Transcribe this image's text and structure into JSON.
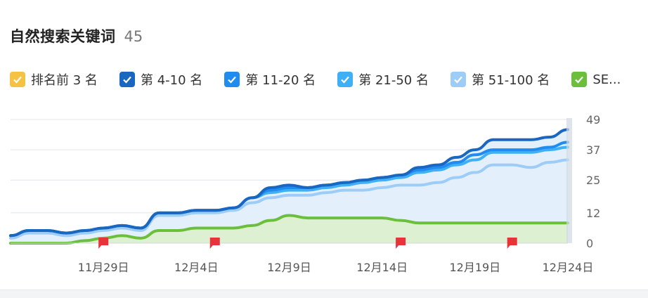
{
  "header": {
    "title": "自然搜索关键词",
    "count": "45"
  },
  "legend": [
    {
      "label": "排名前 3 名",
      "color": "#f6c244"
    },
    {
      "label": "第 4-10 名",
      "color": "#1a67c2"
    },
    {
      "label": "第 11-20 名",
      "color": "#1f8cf0"
    },
    {
      "label": "第 21-50 名",
      "color": "#3fb0f5"
    },
    {
      "label": "第 51-100 名",
      "color": "#9dcdf7"
    },
    {
      "label": "SE...",
      "color": "#6bbf3b"
    }
  ],
  "chart_data": {
    "type": "area",
    "x": [
      "11月24日",
      "11月25日",
      "11月26日",
      "11月27日",
      "11月28日",
      "11月29日",
      "11月30日",
      "12月1日",
      "12月2日",
      "12月3日",
      "12月4日",
      "12月5日",
      "12月6日",
      "12月7日",
      "12月8日",
      "12月9日",
      "12月10日",
      "12月11日",
      "12月12日",
      "12月13日",
      "12月14日",
      "12月15日",
      "12月16日",
      "12月17日",
      "12月18日",
      "12月19日",
      "12月20日",
      "12月21日",
      "12月22日",
      "12月23日",
      "12月24日"
    ],
    "x_tick_labels": [
      "11月29日",
      "12月4日",
      "12月9日",
      "12月14日",
      "12月19日",
      "12月24日"
    ],
    "y_ticks": [
      0,
      12,
      25,
      37,
      49
    ],
    "ylim": [
      0,
      49
    ],
    "series": [
      {
        "name": "第 4-10 名",
        "color": "#1a67c2",
        "values": [
          3,
          5,
          5,
          4,
          5,
          6,
          7,
          6,
          12,
          12,
          13,
          13,
          14,
          18,
          22,
          23,
          22,
          23,
          24,
          25,
          26,
          27,
          30,
          31,
          34,
          37,
          41,
          41,
          41,
          42,
          45
        ]
      },
      {
        "name": "第 11-20 名",
        "color": "#1f8cf0",
        "values": [
          3,
          5,
          5,
          4,
          5,
          6,
          7,
          6,
          12,
          12,
          13,
          13,
          14,
          18,
          21,
          22,
          22,
          23,
          24,
          25,
          26,
          27,
          29,
          30,
          32,
          35,
          37,
          37,
          37,
          38,
          40
        ]
      },
      {
        "name": "第 21-50 名",
        "color": "#3fb0f5",
        "values": [
          3,
          5,
          5,
          4,
          5,
          6,
          7,
          6,
          12,
          12,
          13,
          13,
          14,
          18,
          20,
          21,
          21,
          22,
          23,
          24,
          25,
          26,
          28,
          29,
          31,
          33,
          36,
          36,
          36,
          37,
          38
        ]
      },
      {
        "name": "第 51-100 名",
        "color": "#9dcdf7",
        "values": [
          2,
          4,
          4,
          3,
          4,
          5,
          6,
          5,
          11,
          11,
          12,
          12,
          13,
          16,
          18,
          19,
          19,
          20,
          21,
          21,
          22,
          23,
          23,
          24,
          26,
          28,
          31,
          31,
          30,
          32,
          33
        ]
      },
      {
        "name": "SE...",
        "color": "#6bbf3b",
        "values": [
          0,
          0,
          0,
          0,
          1,
          2,
          3,
          2,
          5,
          5,
          6,
          6,
          6,
          7,
          9,
          11,
          10,
          10,
          10,
          10,
          10,
          9,
          8,
          8,
          8,
          8,
          8,
          8,
          8,
          8,
          8
        ]
      }
    ],
    "markers": [
      "11月29日",
      "12月5日",
      "12月15日",
      "12月21日"
    ],
    "marker_color": "#e8333a",
    "grid": true
  }
}
